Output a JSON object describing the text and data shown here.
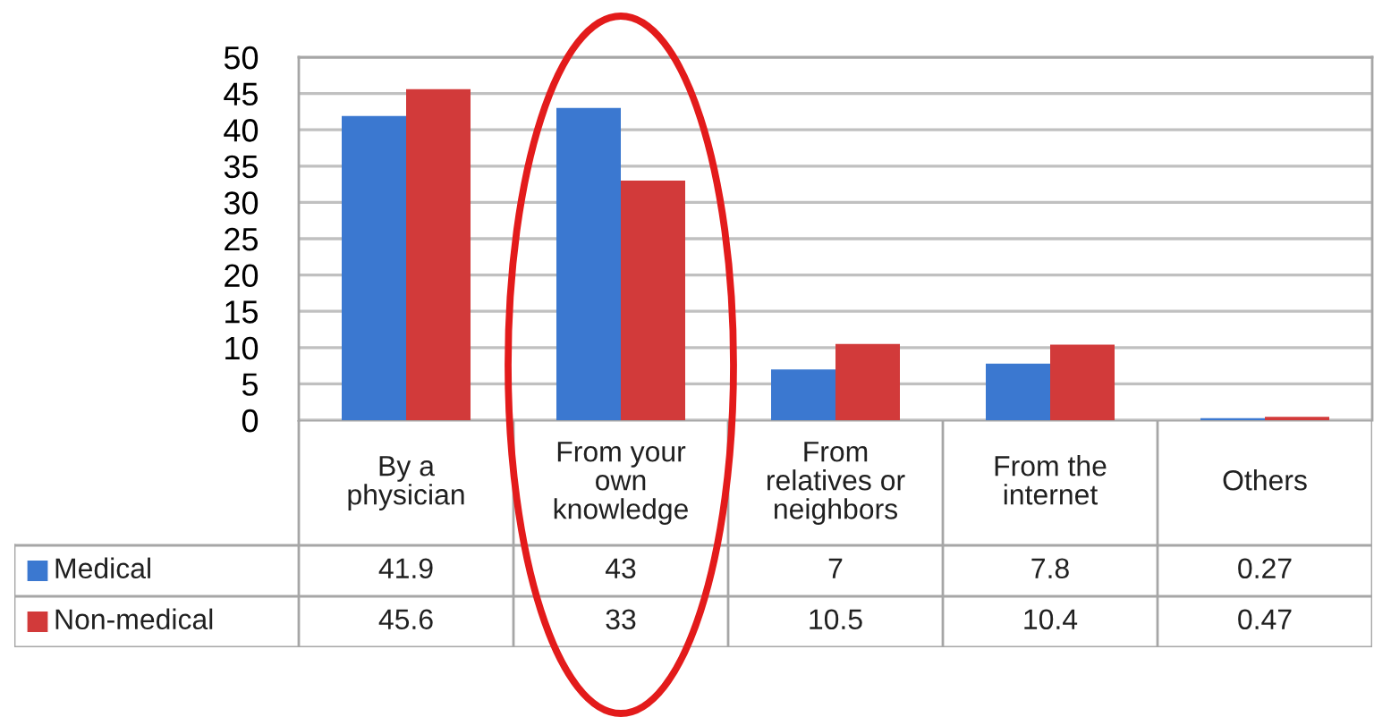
{
  "chart_data": {
    "type": "bar",
    "categories": [
      "By a\nphysician",
      "From your\nown\nknowledge",
      "From\nrelatives or\nneighbors",
      "From the\ninternet",
      "Others"
    ],
    "series": [
      {
        "name": "Medical",
        "color": "#3b78d0",
        "values": [
          41.9,
          43,
          7,
          7.8,
          0.27
        ]
      },
      {
        "name": "Non-medical",
        "color": "#d23a3a",
        "values": [
          45.6,
          33,
          10.5,
          10.4,
          0.47
        ]
      }
    ],
    "ylim": [
      0,
      50
    ],
    "yticks": [
      0,
      5,
      10,
      15,
      20,
      25,
      30,
      35,
      40,
      45,
      50
    ],
    "grid": "y",
    "legend": "bottom left",
    "data_labels": true
  }
}
